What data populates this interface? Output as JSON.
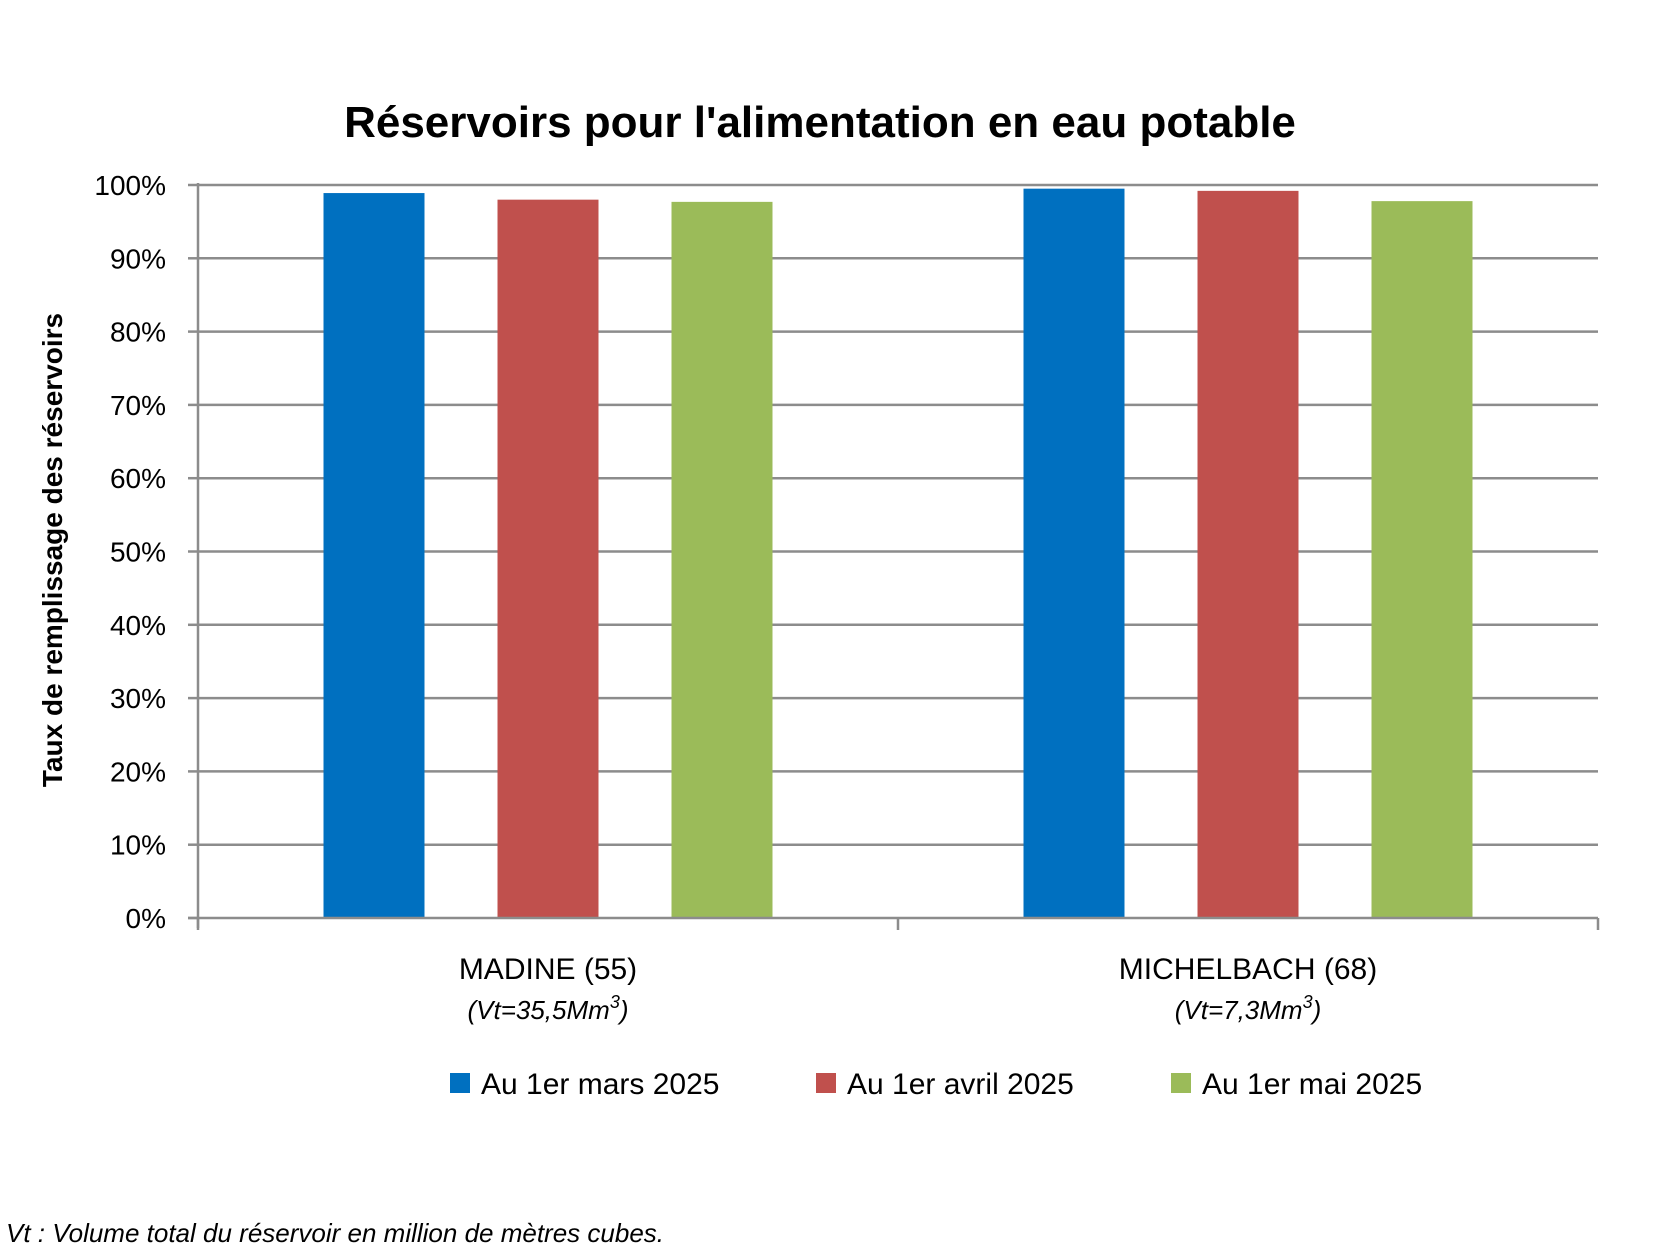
{
  "chart_data": {
    "type": "bar",
    "title": "Réservoirs pour l'alimentation en eau potable",
    "ylabel": "Taux de remplissage des réservoirs",
    "xlabel": "",
    "ylim": [
      0,
      100
    ],
    "y_ticks": [
      "0%",
      "10%",
      "20%",
      "30%",
      "40%",
      "50%",
      "60%",
      "70%",
      "80%",
      "90%",
      "100%"
    ],
    "y_unit": "%",
    "grid": true,
    "legend_position": "bottom",
    "categories": [
      {
        "label": "MADINE (55)",
        "sublabel_main": "(Vt=35,5Mm",
        "sublabel_sup": "3",
        "sublabel_end": ")"
      },
      {
        "label": "MICHELBACH (68)",
        "sublabel_main": "(Vt=7,3Mm",
        "sublabel_sup": "3",
        "sublabel_end": ")"
      }
    ],
    "series": [
      {
        "name": "Au 1er mars 2025",
        "color": "#0070C0",
        "values": [
          98.9,
          99.5
        ]
      },
      {
        "name": "Au 1er avril 2025",
        "color": "#C0504D",
        "values": [
          98.0,
          99.2
        ]
      },
      {
        "name": "Au 1er mai 2025",
        "color": "#9BBB59",
        "values": [
          97.7,
          97.8
        ]
      }
    ],
    "footnote": "Vt : Volume total du réservoir en million de mètres cubes."
  }
}
